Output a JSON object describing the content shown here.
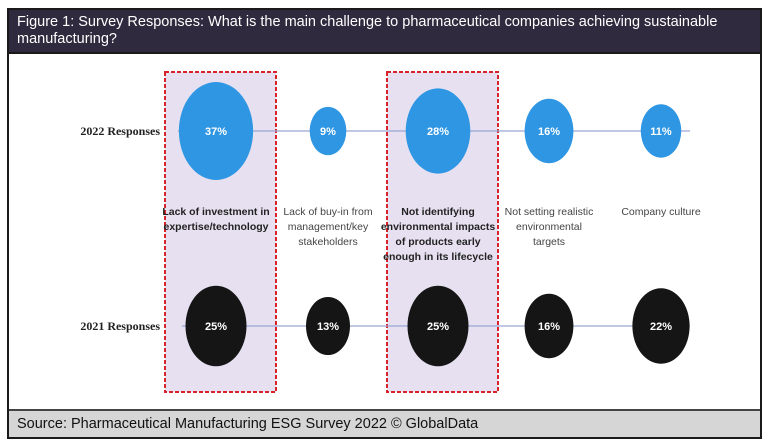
{
  "figure": {
    "title": "Figure 1: Survey Responses: What is the main challenge to pharmaceutical companies achieving sustainable manufacturing?",
    "source": "Source: Pharmaceutical Manufacturing ESG Survey 2022 © GlobalData"
  },
  "chart_data": {
    "type": "bubble",
    "unit": "%",
    "categories": [
      "Lack of investment in expertise/technology",
      "Lack of buy-in from management/key stakeholders",
      "Not identifying environmental impacts of products early enough in its lifecycle",
      "Not setting realistic environmental targets",
      "Company culture"
    ],
    "category_lines": [
      [
        "Lack of investment in",
        "expertise/technology"
      ],
      [
        "Lack of buy-in from",
        "management/key",
        "stakeholders"
      ],
      [
        "Not identifying",
        "environmental impacts",
        "of products early",
        "enough in its lifecycle"
      ],
      [
        "Not setting realistic",
        "environmental",
        "targets"
      ],
      [
        "Company culture"
      ]
    ],
    "highlighted_categories": [
      0,
      2
    ],
    "series": [
      {
        "name": "2022 Responses",
        "values": [
          37,
          9,
          28,
          16,
          11
        ],
        "labels": [
          "37%",
          "9%",
          "28%",
          "16%",
          "11%"
        ],
        "color": "#2e96e3"
      },
      {
        "name": "2021 Responses",
        "values": [
          25,
          13,
          25,
          16,
          22
        ],
        "labels": [
          "25%",
          "13%",
          "25%",
          "16%",
          "22%"
        ],
        "color": "#151515"
      }
    ],
    "highlight_fill": "#e6e0f0",
    "highlight_border": "#d8232a",
    "connector_color": "#9aa6d6"
  }
}
